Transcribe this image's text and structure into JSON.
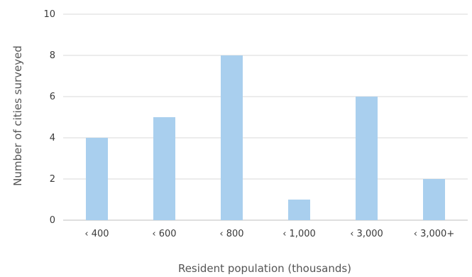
{
  "chart_data": {
    "type": "bar",
    "title": "",
    "xlabel": "Resident population (thousands)",
    "ylabel": "Number of cities surveyed",
    "categories": [
      "‹ 400",
      "‹ 600",
      "‹ 800",
      "‹ 1,000",
      "‹ 3,000",
      "‹ 3,000+"
    ],
    "values": [
      4,
      5,
      8,
      1,
      6,
      2
    ],
    "ylim": [
      0,
      10
    ],
    "yticks": [
      0,
      2,
      4,
      6,
      8,
      10
    ],
    "grid": true,
    "legend": "none",
    "bar_color": "#a9cfee",
    "grid_color": "#d9d9d9"
  }
}
